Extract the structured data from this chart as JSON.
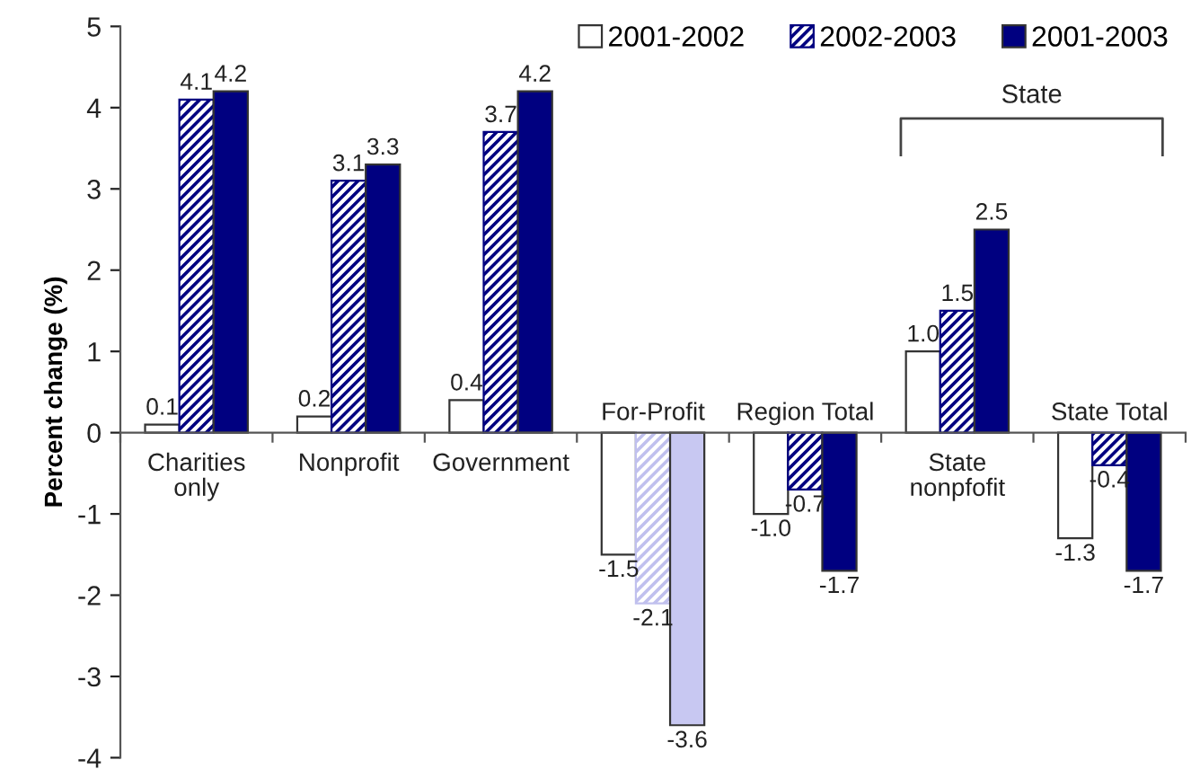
{
  "chart_data": {
    "type": "bar",
    "ylabel": "Percent change (%)",
    "categories": [
      "Charities\nonly",
      "Nonprofit",
      "Government",
      "For-Profit",
      "Region Total",
      "State\nnonpfofit",
      "State Total"
    ],
    "series": [
      {
        "name": "2001-2002",
        "color": "#ffffff",
        "colors": [
          "#ffffff",
          "#ffffff",
          "#ffffff",
          "#ffffff",
          "#ffffff",
          "#ffffff",
          "#ffffff"
        ],
        "values": [
          0.1,
          0.2,
          0.4,
          -1.5,
          -1.0,
          1.0,
          -1.3
        ],
        "value_labels": [
          "0.1",
          "0.2",
          "0.4",
          "-1.5",
          "-1.0",
          "1.0",
          "-1.3"
        ]
      },
      {
        "name": "2002-2003",
        "color": "#000080",
        "colors": [
          "#000080",
          "#000080",
          "#000080",
          "#c0c0ee",
          "#000080",
          "#000080",
          "#000080"
        ],
        "values": [
          4.1,
          3.1,
          3.7,
          -2.1,
          -0.7,
          1.5,
          -0.4
        ],
        "value_labels": [
          "4.1",
          "3.1",
          "3.7",
          "-2.1",
          "-0.7",
          "1.5",
          "-0.4"
        ]
      },
      {
        "name": "2001-2003",
        "color": "#000080",
        "colors": [
          "#000080",
          "#000080",
          "#000080",
          "#c8c8f2",
          "#000080",
          "#000080",
          "#000080"
        ],
        "values": [
          4.2,
          3.3,
          4.2,
          -3.6,
          -1.7,
          2.5,
          -1.7
        ],
        "value_labels": [
          "4.2",
          "3.3",
          "4.2",
          "-3.6",
          "-1.7",
          "2.5",
          "-1.7"
        ]
      }
    ],
    "ylim": [
      -4,
      5
    ],
    "yticks": [
      -4,
      -3,
      -2,
      -1,
      0,
      1,
      2,
      3,
      4,
      5
    ],
    "legend": "top right",
    "grid": false,
    "annotations": [
      "State"
    ]
  }
}
